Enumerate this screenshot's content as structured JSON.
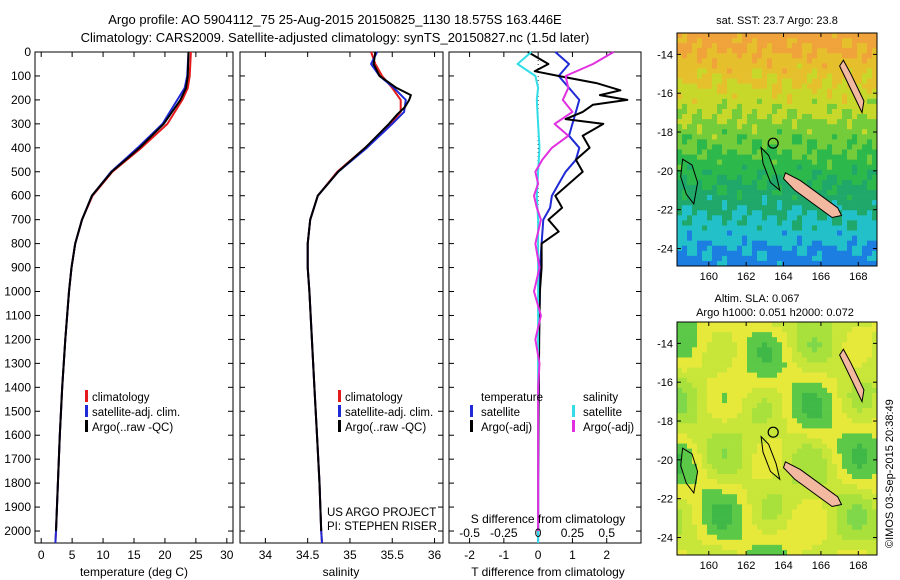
{
  "header": {
    "line1": "Argo profile: AO 5904112_75 25-Aug-2015 20150825_1130 18.575S 163.446E",
    "line2": "Climatology: CARS2009. Satellite-adjusted climatology: synTS_20150827.nc (1.5d later)"
  },
  "colors": {
    "climatology": "#e41a1c",
    "satellite_clim": "#1f2ad6",
    "argo": "#000000",
    "salinity_satellite": "#33dde8",
    "salinity_argo": "#e030e0"
  },
  "chart_data": [
    {
      "type": "line",
      "id": "temperature-profile",
      "xlabel": "temperature (deg C)",
      "xlim": [
        -1,
        31
      ],
      "xticks": [
        0,
        5,
        10,
        15,
        20,
        25,
        30
      ],
      "ylim": [
        0,
        2050
      ],
      "yticks": [
        0,
        100,
        200,
        300,
        400,
        500,
        600,
        700,
        800,
        900,
        1000,
        1100,
        1200,
        1300,
        1400,
        1500,
        1600,
        1700,
        1800,
        1900,
        2000
      ],
      "legend": [
        "climatology",
        "satellite-adj. clim.",
        "Argo(..raw -QC)"
      ],
      "series": [
        {
          "name": "climatology",
          "depth": [
            0,
            100,
            150,
            200,
            300,
            400,
            500,
            600,
            700,
            800,
            900,
            1000,
            1200,
            1400,
            1600,
            1800,
            2000,
            2050
          ],
          "values": [
            24.2,
            24.0,
            23.7,
            22.8,
            20.4,
            16.2,
            11.5,
            8.3,
            6.6,
            5.5,
            4.9,
            4.5,
            3.9,
            3.4,
            3.0,
            2.7,
            2.4,
            2.3
          ]
        },
        {
          "name": "satellite-adj. clim.",
          "depth": [
            0,
            100,
            150,
            200,
            300,
            400,
            500,
            600,
            700,
            800,
            900,
            1000,
            1200,
            1400,
            1600,
            1800,
            2000,
            2050
          ],
          "values": [
            23.8,
            23.6,
            23.2,
            22.0,
            19.6,
            15.6,
            11.3,
            8.2,
            6.6,
            5.5,
            4.9,
            4.5,
            3.9,
            3.4,
            3.0,
            2.7,
            2.4,
            2.3
          ]
        },
        {
          "name": "Argo(..raw -QC)",
          "depth": [
            0,
            100,
            150,
            200,
            300,
            400,
            500,
            600,
            700,
            800,
            900,
            1000,
            1200,
            1400,
            1600,
            1800,
            2000
          ],
          "values": [
            23.8,
            23.7,
            23.4,
            22.5,
            19.8,
            15.9,
            11.4,
            8.2,
            6.6,
            5.5,
            4.9,
            4.5,
            3.9,
            3.4,
            3.0,
            2.7,
            2.4
          ]
        }
      ]
    },
    {
      "type": "line",
      "id": "salinity-profile",
      "xlabel": "salinity",
      "xlim": [
        33.7,
        36.1
      ],
      "xticks": [
        34,
        34.5,
        35,
        35.5,
        36
      ],
      "ylim": [
        0,
        2050
      ],
      "legend": [
        "climatology",
        "satellite-adj. clim.",
        "Argo(..raw -QC)"
      ],
      "annotation": [
        "US ARGO PROJECT",
        "PI: STEPHEN RISER"
      ],
      "series": [
        {
          "name": "climatology",
          "depth": [
            0,
            50,
            100,
            150,
            200,
            250,
            300,
            400,
            500,
            600,
            700,
            800,
            900,
            1000,
            1200,
            1400,
            1600,
            1800,
            2000,
            2050
          ],
          "values": [
            35.25,
            35.3,
            35.38,
            35.5,
            35.6,
            35.6,
            35.48,
            35.18,
            34.85,
            34.62,
            34.53,
            34.5,
            34.5,
            34.52,
            34.55,
            34.58,
            34.61,
            34.64,
            34.66,
            34.67
          ]
        },
        {
          "name": "satellite-adj. clim.",
          "depth": [
            0,
            50,
            100,
            150,
            200,
            250,
            300,
            400,
            500,
            600,
            700,
            800,
            900,
            1000,
            1200,
            1400,
            1600,
            1800,
            2000,
            2050
          ],
          "values": [
            35.32,
            35.25,
            35.35,
            35.52,
            35.66,
            35.64,
            35.5,
            35.2,
            34.86,
            34.62,
            34.53,
            34.5,
            34.5,
            34.52,
            34.55,
            34.58,
            34.61,
            34.64,
            34.66,
            34.67
          ]
        },
        {
          "name": "Argo(..raw -QC)",
          "depth": [
            0,
            50,
            100,
            150,
            180,
            200,
            230,
            260,
            300,
            400,
            500,
            600,
            700,
            800,
            900,
            1000,
            1200,
            1400,
            1600,
            1800,
            2000
          ],
          "values": [
            35.3,
            35.28,
            35.35,
            35.55,
            35.72,
            35.7,
            35.65,
            35.56,
            35.46,
            35.18,
            34.86,
            34.62,
            34.53,
            34.5,
            34.5,
            34.52,
            34.55,
            34.58,
            34.61,
            34.64,
            34.66
          ]
        }
      ]
    },
    {
      "type": "line",
      "id": "difference-profile",
      "xlabel": "T difference from climatology",
      "xlabel_top": "S difference from climatology",
      "xlim": [
        -2.6,
        3.0
      ],
      "xticks": [
        -2,
        -1,
        0,
        1,
        2
      ],
      "s_ticks": [
        "-0.5",
        "-0.25",
        "0",
        "0.25",
        "0.5"
      ],
      "ylim": [
        0,
        2050
      ],
      "legend_temperature": {
        "title": "temperature",
        "items": [
          "satellite",
          "Argo(-adj)"
        ]
      },
      "legend_salinity": {
        "title": "salinity",
        "items": [
          "satellite",
          "Argo(-adj)"
        ]
      },
      "series": [
        {
          "name": "temperature satellite",
          "depth": [
            0,
            50,
            100,
            150,
            200,
            250,
            300,
            350,
            400,
            450,
            500,
            550,
            600,
            650,
            700,
            800,
            900,
            1000,
            1200,
            1400,
            1600,
            1800,
            2000,
            2050
          ],
          "values": [
            0.5,
            0.9,
            0.6,
            0.9,
            1.2,
            1.1,
            1.0,
            0.9,
            1.2,
            1.1,
            0.8,
            0.6,
            0.4,
            0.35,
            0.15,
            0.1,
            0.05,
            0.05,
            0.02,
            0.02,
            0.0,
            0.0,
            0.0,
            0.0
          ]
        },
        {
          "name": "temperature Argo(-adj)",
          "depth": [
            0,
            50,
            80,
            100,
            130,
            160,
            180,
            200,
            220,
            250,
            280,
            300,
            350,
            400,
            450,
            500,
            550,
            600,
            650,
            700,
            750,
            800,
            900,
            1000,
            1200,
            1400,
            1600,
            1800,
            2000
          ],
          "values": [
            -0.3,
            0.3,
            -0.1,
            0.6,
            1.7,
            2.4,
            1.8,
            2.6,
            1.6,
            1.3,
            0.8,
            1.9,
            1.3,
            1.5,
            1.1,
            1.3,
            0.9,
            0.5,
            0.7,
            0.3,
            0.6,
            0.1,
            0.1,
            0.05,
            0.03,
            0.02,
            0.01,
            0.0,
            0.0
          ]
        },
        {
          "name": "salinity satellite",
          "depth": [
            0,
            50,
            100,
            150,
            200,
            300,
            400,
            500,
            600,
            700,
            800,
            1000,
            1200,
            1400,
            1600,
            1800,
            2000,
            2050
          ],
          "values": [
            -0.05,
            -0.15,
            -0.02,
            0.0,
            -0.01,
            0.0,
            0.01,
            0.0,
            -0.01,
            0.0,
            0.0,
            0.0,
            0.0,
            0.0,
            0.0,
            0.0,
            0.0,
            0.0
          ]
        },
        {
          "name": "salinity Argo(-adj)",
          "depth": [
            0,
            50,
            100,
            150,
            200,
            250,
            300,
            350,
            400,
            450,
            500,
            550,
            600,
            650,
            700,
            800,
            900,
            1000,
            1100,
            1200,
            1300,
            1400,
            1500,
            1600,
            1800,
            2000
          ],
          "values": [
            0.55,
            0.4,
            0.2,
            0.22,
            0.18,
            0.25,
            0.12,
            0.22,
            0.1,
            0.03,
            -0.02,
            0.0,
            -0.03,
            -0.01,
            0.02,
            -0.02,
            0.01,
            -0.03,
            0.02,
            -0.02,
            0.01,
            0.0,
            0.0,
            0.0,
            0.0,
            0.0
          ]
        }
      ]
    },
    {
      "type": "heatmap",
      "id": "sst-map",
      "title": "sat. SST: 23.7  Argo: 23.8",
      "xticks": [
        160,
        162,
        164,
        166,
        168
      ],
      "yticks": [
        -14,
        -16,
        -18,
        -20,
        -22,
        -24
      ],
      "xlim": [
        158.3,
        169.0
      ],
      "ylim": [
        -24.9,
        -12.9
      ],
      "argo_position": {
        "lon": 163.446,
        "lat": -18.575
      },
      "colors": [
        "#f0a33a",
        "#e6bf2c",
        "#c8d82b",
        "#74cc3a",
        "#2cb84a",
        "#1fa86a",
        "#22c0c8",
        "#1c7ee0"
      ]
    },
    {
      "type": "heatmap",
      "id": "sla-map",
      "title_line1": "Altim. SLA: 0.067",
      "title_line2": "Argo h1000: 0.051 h2000: 0.072",
      "xticks": [
        160,
        162,
        164,
        166,
        168
      ],
      "yticks": [
        -14,
        -16,
        -18,
        -20,
        -22,
        -24
      ],
      "xlim": [
        158.3,
        169.0
      ],
      "ylim": [
        -24.9,
        -12.9
      ],
      "argo_position": {
        "lon": 163.446,
        "lat": -18.575
      },
      "colors": [
        "#7ed84a",
        "#a8e03c",
        "#c8e63a",
        "#e6e83a",
        "#5cc848",
        "#40b848"
      ]
    }
  ],
  "side_text": "©IMOS 03-Sep-2015 20:38:49"
}
